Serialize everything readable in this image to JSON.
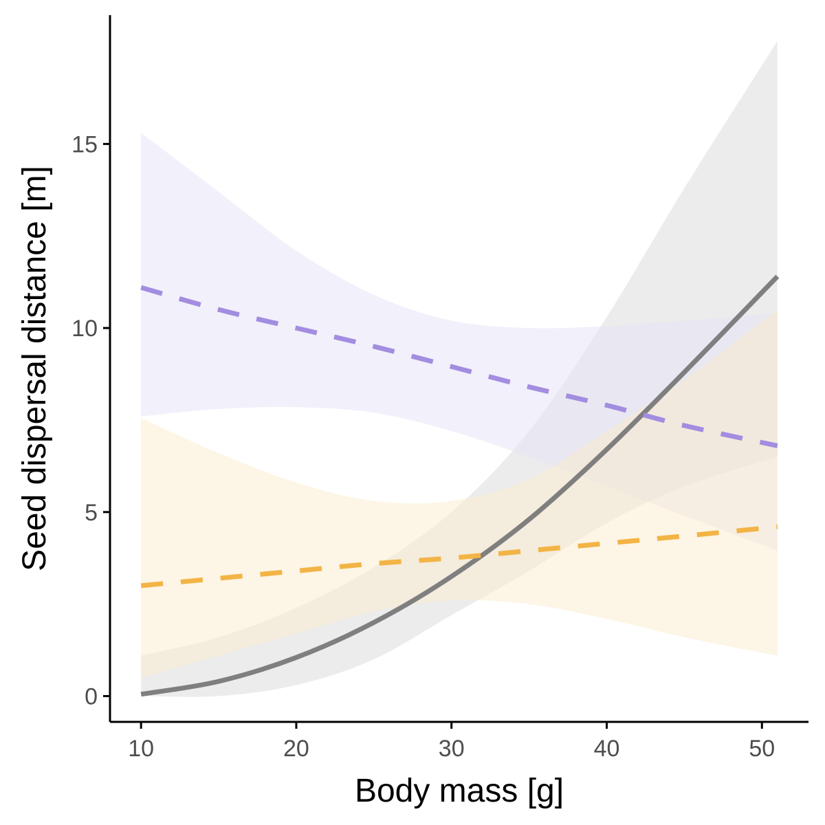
{
  "chart_data": {
    "type": "line",
    "title": "",
    "xlabel": "Body mass [g]",
    "ylabel": "Seed dispersal distance [m]",
    "xlim": [
      8,
      53
    ],
    "ylim": [
      -0.7,
      18.5
    ],
    "xticks": [
      10,
      20,
      30,
      40,
      50
    ],
    "yticks": [
      0,
      5,
      10,
      15
    ],
    "grid": false,
    "legend": "none",
    "series": [
      {
        "color": "#7f7f7f",
        "fill": "#d9d9d9",
        "dash": "solid",
        "x": [
          10,
          15,
          20,
          25,
          30,
          35,
          40,
          45,
          51
        ],
        "y": [
          0.05,
          0.4,
          1.05,
          2.0,
          3.25,
          4.8,
          6.7,
          8.8,
          11.4
        ],
        "lower": [
          0.0,
          0.0,
          0.3,
          1.0,
          2.2,
          3.4,
          4.7,
          5.7,
          6.5
        ],
        "upper": [
          1.1,
          1.6,
          2.4,
          3.5,
          5.0,
          7.2,
          10.3,
          13.8,
          17.8
        ]
      },
      {
        "color": "#a28de0",
        "fill": "#e6e1f5",
        "dash": "dashed",
        "x": [
          10,
          15,
          20,
          25,
          30,
          35,
          40,
          45,
          51
        ],
        "y": [
          11.1,
          10.5,
          10.0,
          9.5,
          8.95,
          8.4,
          7.9,
          7.35,
          6.8
        ],
        "lower": [
          7.6,
          7.8,
          7.85,
          7.7,
          7.2,
          6.5,
          5.7,
          4.9,
          3.95
        ],
        "upper": [
          15.3,
          13.7,
          12.1,
          10.9,
          10.2,
          10.0,
          10.05,
          10.2,
          10.4
        ]
      },
      {
        "color": "#f2b445",
        "fill": "#fbeccb",
        "dash": "dashed",
        "x": [
          10,
          15,
          20,
          25,
          30,
          35,
          40,
          45,
          51
        ],
        "y": [
          3.0,
          3.2,
          3.4,
          3.6,
          3.75,
          3.95,
          4.15,
          4.35,
          4.6
        ],
        "lower": [
          0.5,
          1.1,
          1.7,
          2.3,
          2.6,
          2.5,
          2.1,
          1.6,
          1.1
        ],
        "upper": [
          7.55,
          6.6,
          5.8,
          5.3,
          5.3,
          5.9,
          7.2,
          8.6,
          10.5
        ]
      }
    ]
  }
}
